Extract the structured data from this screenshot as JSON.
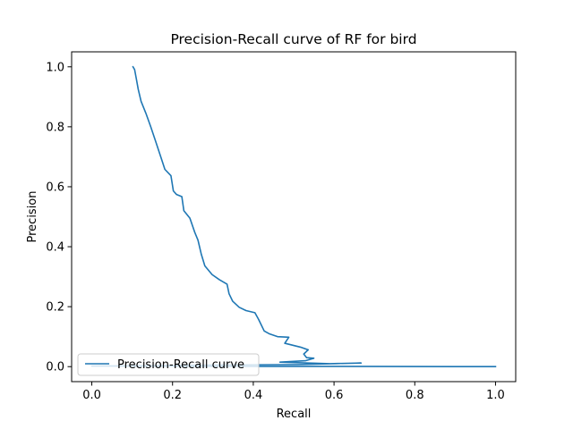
{
  "chart_data": {
    "type": "line",
    "title": "Precision-Recall curve of RF for bird",
    "xlabel": "Recall",
    "ylabel": "Precision",
    "xlim": [
      -0.05,
      1.05
    ],
    "ylim": [
      -0.05,
      1.05
    ],
    "xticks": [
      "0.0",
      "0.2",
      "0.4",
      "0.6",
      "0.8",
      "1.0"
    ],
    "yticks": [
      "0.0",
      "0.2",
      "0.4",
      "0.6",
      "0.8",
      "1.0"
    ],
    "grid": false,
    "legend_position": "lower-left",
    "line_color": "#1f77b4",
    "series": [
      {
        "name": "Precision-Recall curve",
        "x": [
          0.102,
          0.106,
          0.11,
          0.115,
          0.122,
          0.134,
          0.146,
          0.158,
          0.17,
          0.181,
          0.196,
          0.202,
          0.21,
          0.223,
          0.228,
          0.243,
          0.255,
          0.263,
          0.271,
          0.28,
          0.298,
          0.316,
          0.335,
          0.34,
          0.349,
          0.365,
          0.382,
          0.404,
          0.413,
          0.427,
          0.439,
          0.46,
          0.488,
          0.478,
          0.517,
          0.536,
          0.525,
          0.532,
          0.55,
          0.53,
          0.466,
          0.59,
          0.667,
          0.51,
          0.27,
          0.12,
          0.0,
          0.3,
          0.6,
          1.0
        ],
        "y": [
          1.0,
          0.991,
          0.962,
          0.925,
          0.885,
          0.845,
          0.8,
          0.752,
          0.703,
          0.658,
          0.637,
          0.586,
          0.574,
          0.567,
          0.52,
          0.495,
          0.448,
          0.422,
          0.376,
          0.336,
          0.307,
          0.29,
          0.275,
          0.243,
          0.218,
          0.198,
          0.187,
          0.18,
          0.158,
          0.119,
          0.11,
          0.1,
          0.098,
          0.078,
          0.065,
          0.056,
          0.042,
          0.03,
          0.028,
          0.02,
          0.015,
          0.01,
          0.012,
          0.007,
          0.005,
          0.003,
          0.002,
          0.001,
          0.001,
          0.0
        ]
      }
    ]
  }
}
